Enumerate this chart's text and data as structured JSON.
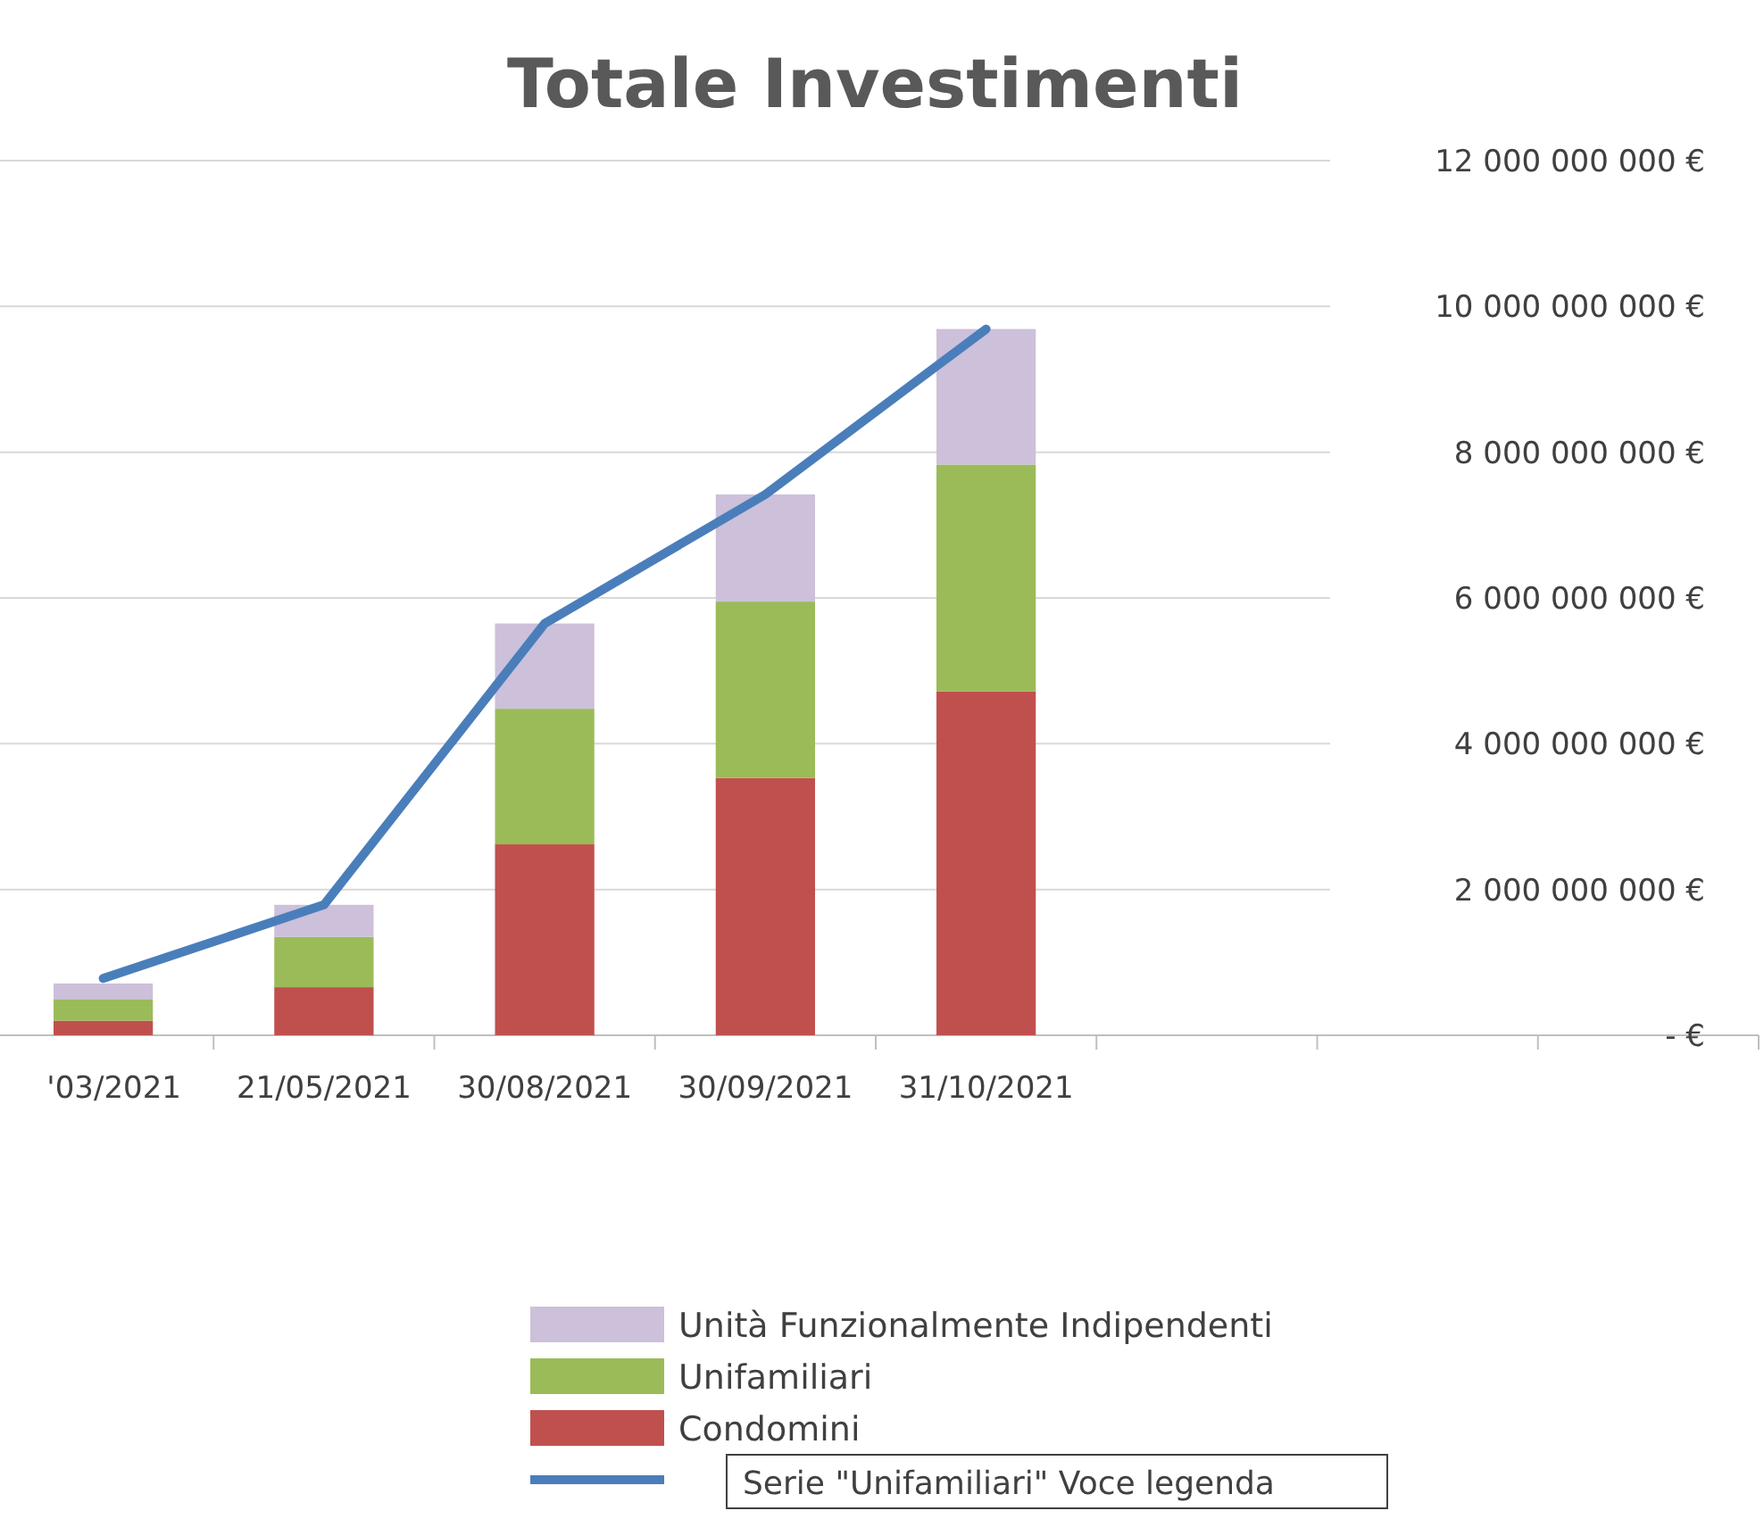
{
  "chart_data": {
    "type": "bar",
    "title": "Totale Investimenti",
    "stacked": true,
    "categories": [
      "'03/2021",
      "21/05/2021",
      "30/08/2021",
      "30/09/2021",
      "31/10/2021",
      null,
      null,
      null
    ],
    "series": [
      {
        "name": "Condomini",
        "color": "#c0504d",
        "values": [
          200000000,
          660000000,
          2620000000,
          3530000000,
          4720000000,
          null,
          null,
          null
        ]
      },
      {
        "name": "Unifamiliari",
        "color": "#9bbb59",
        "values": [
          290000000,
          690000000,
          1860000000,
          2420000000,
          3110000000,
          null,
          null,
          null
        ]
      },
      {
        "name": "Unità Funzionalmente Indipendenti",
        "color": "#ccc0da",
        "values": [
          220000000,
          440000000,
          1170000000,
          1470000000,
          1860000000,
          null,
          null,
          null
        ]
      },
      {
        "type": "line",
        "color": "#4a7ebb",
        "values": [
          780000000,
          1790000000,
          5650000000,
          7420000000,
          9690000000,
          null,
          null,
          null
        ]
      }
    ],
    "ylim": [
      0,
      12000000000
    ],
    "yticks": [
      {
        "value": 0,
        "label": "- €"
      },
      {
        "value": 2000000000,
        "label": "2 000 000 000 €"
      },
      {
        "value": 4000000000,
        "label": "4 000 000 000 €"
      },
      {
        "value": 6000000000,
        "label": "6 000 000 000 €"
      },
      {
        "value": 8000000000,
        "label": "8 000 000 000 €"
      },
      {
        "value": 10000000000,
        "label": "10 000 000 000 €"
      },
      {
        "value": 12000000000,
        "label": "12 000 000 000 €"
      }
    ],
    "grid": "y",
    "legend": "bottom",
    "annotations": [
      "Serie \"Unifamiliari\" Voce legenda"
    ]
  }
}
